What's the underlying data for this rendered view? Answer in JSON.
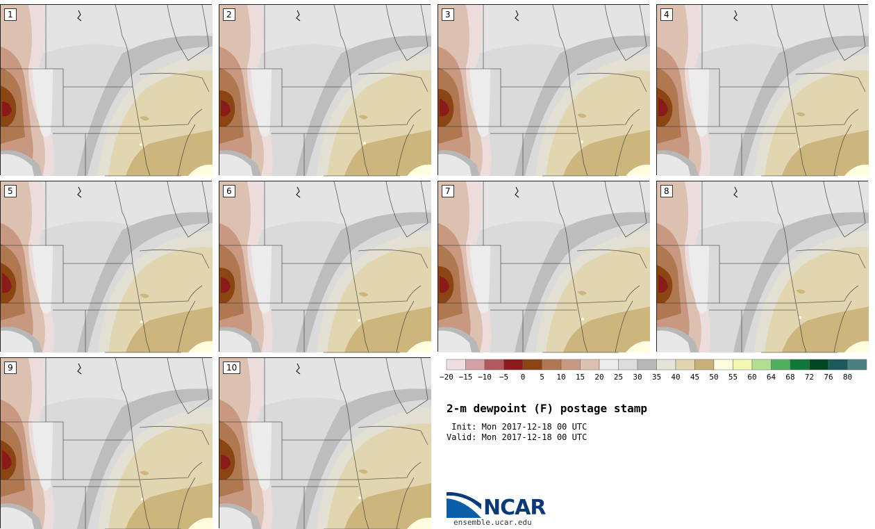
{
  "panels": [
    {
      "label": "1"
    },
    {
      "label": "2"
    },
    {
      "label": "3"
    },
    {
      "label": "4"
    },
    {
      "label": "5"
    },
    {
      "label": "6"
    },
    {
      "label": "7"
    },
    {
      "label": "8"
    },
    {
      "label": "9"
    },
    {
      "label": "10"
    }
  ],
  "legend": {
    "colors": [
      "#f0dfe0",
      "#d4a0a6",
      "#b05a5e",
      "#8b1a1a",
      "#8b4513",
      "#b07850",
      "#c89880",
      "#dcc0b0",
      "#ececec",
      "#dcdcdc",
      "#b8b8b8",
      "#e4e4d8",
      "#e2d6b0",
      "#c8b078",
      "#fffce0",
      "#f4f8b0",
      "#b0e090",
      "#50b060",
      "#107838",
      "#004820",
      "#1a5a5a",
      "#4a8080"
    ],
    "tick_labels": [
      "−20",
      "−15",
      "−10",
      "−5",
      "0",
      "5",
      "10",
      "15",
      "20",
      "25",
      "30",
      "35",
      "40",
      "45",
      "50",
      "55",
      "60",
      "64",
      "68",
      "72",
      "76",
      "80"
    ]
  },
  "title": "2-m dewpoint (F) postage stamp",
  "init_line": " Init: Mon 2017-12-18 00 UTC",
  "valid_line": "Valid: Mon 2017-12-18 00 UTC",
  "logo": {
    "text": "NCAR",
    "url": "ensemble.ucar.edu"
  }
}
